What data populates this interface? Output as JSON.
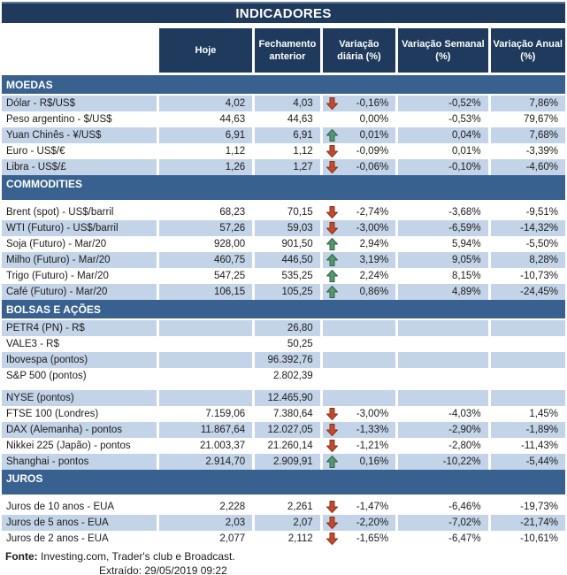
{
  "title": "INDICADORES",
  "columns": [
    "Hoje",
    "Fechamento anterior",
    "Variação diária (%)",
    "Variação Semanal (%)",
    "Variação Anual (%)"
  ],
  "colors": {
    "navy_header": "#1f3a5c",
    "section_blue": "#38618f",
    "row_light_blue": "#c3d3e8",
    "arrow_up": "#55976f",
    "arrow_up_border": "#33614a",
    "arrow_down": "#c14a2f",
    "arrow_down_border": "#8c3118"
  },
  "sections": [
    {
      "name": "MOEDAS",
      "rows": [
        {
          "label": "Dólar - R$/US$",
          "hoje": "4,02",
          "fech": "4,03",
          "arrow": "down",
          "vd": "-0,16%",
          "vs": "-0,52%",
          "va": "7,86%"
        },
        {
          "label": "Peso argentino - $/US$",
          "hoje": "44,63",
          "fech": "44,63",
          "arrow": "",
          "vd": "0,00%",
          "vs": "-0,53%",
          "va": "79,67%"
        },
        {
          "label": "Yuan Chinês - ¥/US$",
          "hoje": "6,91",
          "fech": "6,91",
          "arrow": "up",
          "vd": "0,01%",
          "vs": "0,04%",
          "va": "7,68%"
        },
        {
          "label": "Euro - US$/€",
          "hoje": "1,12",
          "fech": "1,12",
          "arrow": "down",
          "vd": "-0,09%",
          "vs": "0,01%",
          "va": "-3,39%"
        },
        {
          "label": "Libra - US$/£",
          "hoje": "1,26",
          "fech": "1,27",
          "arrow": "down",
          "vd": "-0,06%",
          "vs": "-0,10%",
          "va": "-4,60%"
        }
      ]
    },
    {
      "name": "COMMODITIES",
      "rows": [
        {
          "label": "Brent (spot) - US$/barril",
          "hoje": "68,23",
          "fech": "70,15",
          "arrow": "down",
          "vd": "-2,74%",
          "vs": "-3,68%",
          "va": "-9,51%"
        },
        {
          "label": "WTI (Futuro) - US$/barril",
          "hoje": "57,26",
          "fech": "59,03",
          "arrow": "down",
          "vd": "-3,00%",
          "vs": "-6,59%",
          "va": "-14,32%"
        },
        {
          "label": "Soja (Futuro) - Mar/20",
          "hoje": "928,00",
          "fech": "901,50",
          "arrow": "up",
          "vd": "2,94%",
          "vs": "5,94%",
          "va": "-5,50%"
        },
        {
          "label": "Milho (Futuro) - Mar/20",
          "hoje": "460,75",
          "fech": "446,50",
          "arrow": "up",
          "vd": "3,19%",
          "vs": "9,05%",
          "va": "8,28%"
        },
        {
          "label": "Trigo (Futuro) - Mar/20",
          "hoje": "547,25",
          "fech": "535,25",
          "arrow": "up",
          "vd": "2,24%",
          "vs": "8,15%",
          "va": "-10,73%"
        },
        {
          "label": "Café (Futuro) - Mar/20",
          "hoje": "106,15",
          "fech": "105,25",
          "arrow": "up",
          "vd": "0,86%",
          "vs": "4,89%",
          "va": "-24,45%"
        }
      ]
    },
    {
      "name": "BOLSAS E AÇÕES",
      "rows": [
        {
          "label": "PETR4 (PN) - R$",
          "hoje": "",
          "fech": "26,80",
          "arrow": "",
          "vd": "",
          "vs": "",
          "va": ""
        },
        {
          "label": "VALE3 - R$",
          "hoje": "",
          "fech": "50,25",
          "arrow": "",
          "vd": "",
          "vs": "",
          "va": ""
        },
        {
          "label": "Ibovespa (pontos)",
          "hoje": "",
          "fech": "96.392,76",
          "arrow": "",
          "vd": "",
          "vs": "",
          "va": ""
        },
        {
          "label": "S&P 500 (pontos)",
          "hoje": "",
          "fech": "2.802,39",
          "arrow": "",
          "vd": "",
          "vs": "",
          "va": ""
        },
        {
          "label": "NYSE (pontos)",
          "hoje": "",
          "fech": "12.465,90",
          "arrow": "",
          "vd": "",
          "vs": "",
          "va": "",
          "spacer_before": true
        },
        {
          "label": "FTSE 100 (Londres)",
          "hoje": "7.159,06",
          "fech": "7.380,64",
          "arrow": "down",
          "vd": "-3,00%",
          "vs": "-4,03%",
          "va": "1,45%"
        },
        {
          "label": "DAX (Alemanha) - pontos",
          "hoje": "11.867,64",
          "fech": "12.027,05",
          "arrow": "down",
          "vd": "-1,33%",
          "vs": "-2,90%",
          "va": "-1,89%"
        },
        {
          "label": "Nikkei 225 (Japão) - pontos",
          "hoje": "21.003,37",
          "fech": "21.260,14",
          "arrow": "down",
          "vd": "-1,21%",
          "vs": "-2,80%",
          "va": "-11,43%"
        },
        {
          "label": "Shanghai - pontos",
          "hoje": "2.914,70",
          "fech": "2.909,91",
          "arrow": "up",
          "vd": "0,16%",
          "vs": "-10,22%",
          "va": "-5,44%"
        }
      ]
    },
    {
      "name": "JUROS",
      "rows": [
        {
          "label": "Juros de 10 anos - EUA",
          "hoje": "2,228",
          "fech": "2,261",
          "arrow": "down",
          "vd": "-1,47%",
          "vs": "-6,46%",
          "va": "-19,73%"
        },
        {
          "label": "Juros de 5 anos - EUA",
          "hoje": "2,03",
          "fech": "2,07",
          "arrow": "down",
          "vd": "-2,20%",
          "vs": "-7,02%",
          "va": "-21,74%"
        },
        {
          "label": "Juros de 2 anos - EUA",
          "hoje": "2,077",
          "fech": "2,112",
          "arrow": "down",
          "vd": "-1,65%",
          "vs": "-6,47%",
          "va": "-10,61%"
        }
      ]
    }
  ],
  "footer": {
    "fonte_label": "Fonte:",
    "fonte_text": " Investing.com, Trader's club e Broadcast.",
    "extraido": "Extraído: 29/05/2019 09:22"
  }
}
